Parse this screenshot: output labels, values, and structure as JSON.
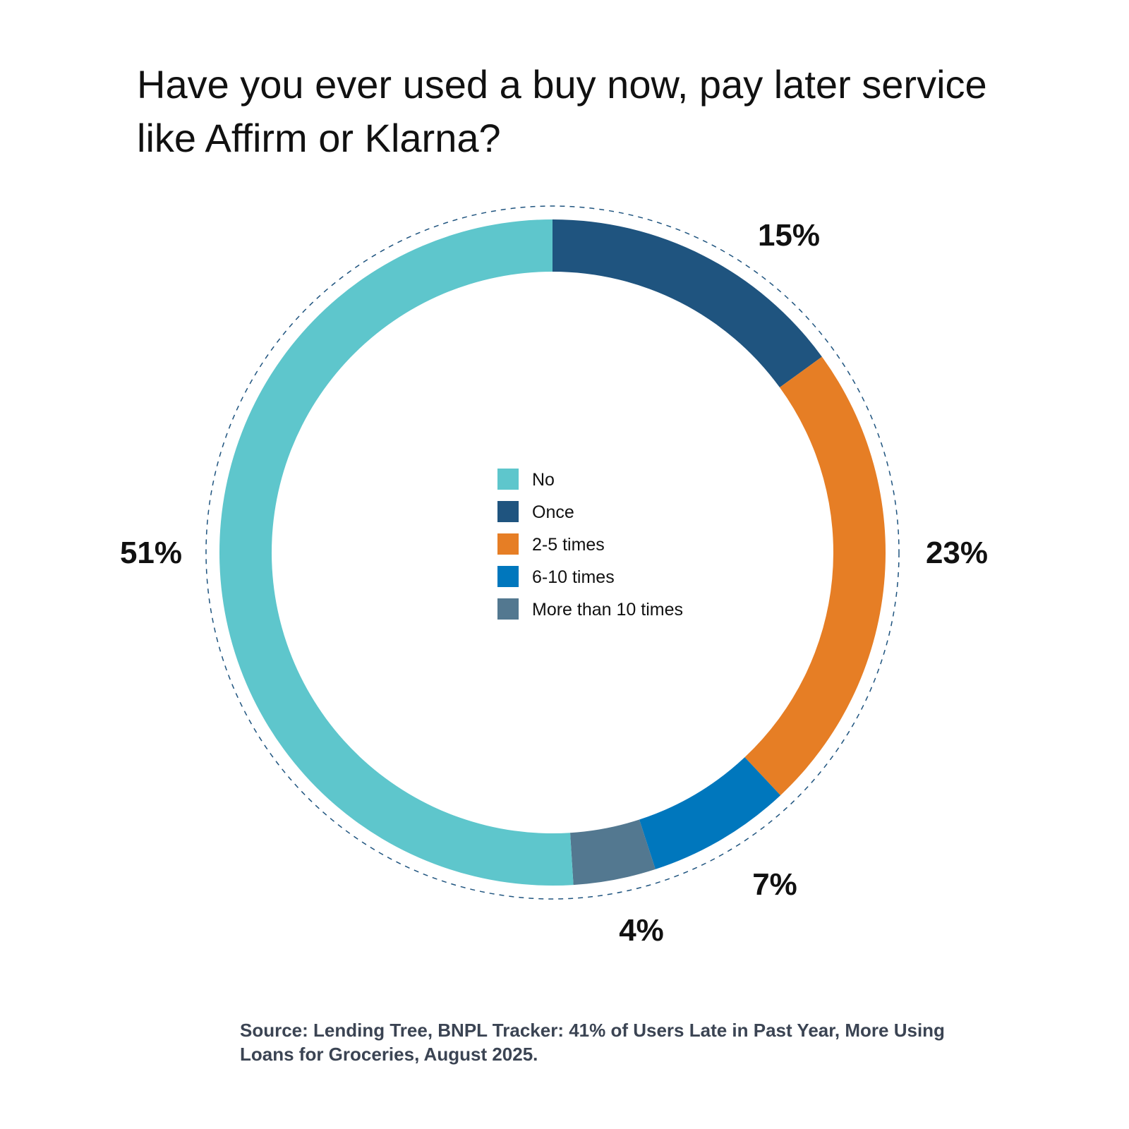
{
  "title": "Have you ever used a buy now, pay later service like Affirm or Klarna?",
  "source": "Source: Lending Tree, BNPL Tracker: 41% of Users Late in Past Year, More Using Loans for Groceries, August 2025.",
  "chart_data": {
    "type": "pie",
    "variant": "donut",
    "title": "Have you ever used a buy now, pay later service like Affirm or Klarna?",
    "unit": "%",
    "legend_position": "center",
    "slices": [
      {
        "label": "No",
        "value": 51,
        "display": "51%",
        "color": "#5ec6cc"
      },
      {
        "label": "Once",
        "value": 15,
        "display": "15%",
        "color": "#1f547f"
      },
      {
        "label": "2-5 times",
        "value": 23,
        "display": "23%",
        "color": "#e67e25"
      },
      {
        "label": "6-10 times",
        "value": 7,
        "display": "7%",
        "color": "#0077bd"
      },
      {
        "label": "More than 10 times",
        "value": 4,
        "display": "4%",
        "color": "#537890"
      }
    ]
  }
}
